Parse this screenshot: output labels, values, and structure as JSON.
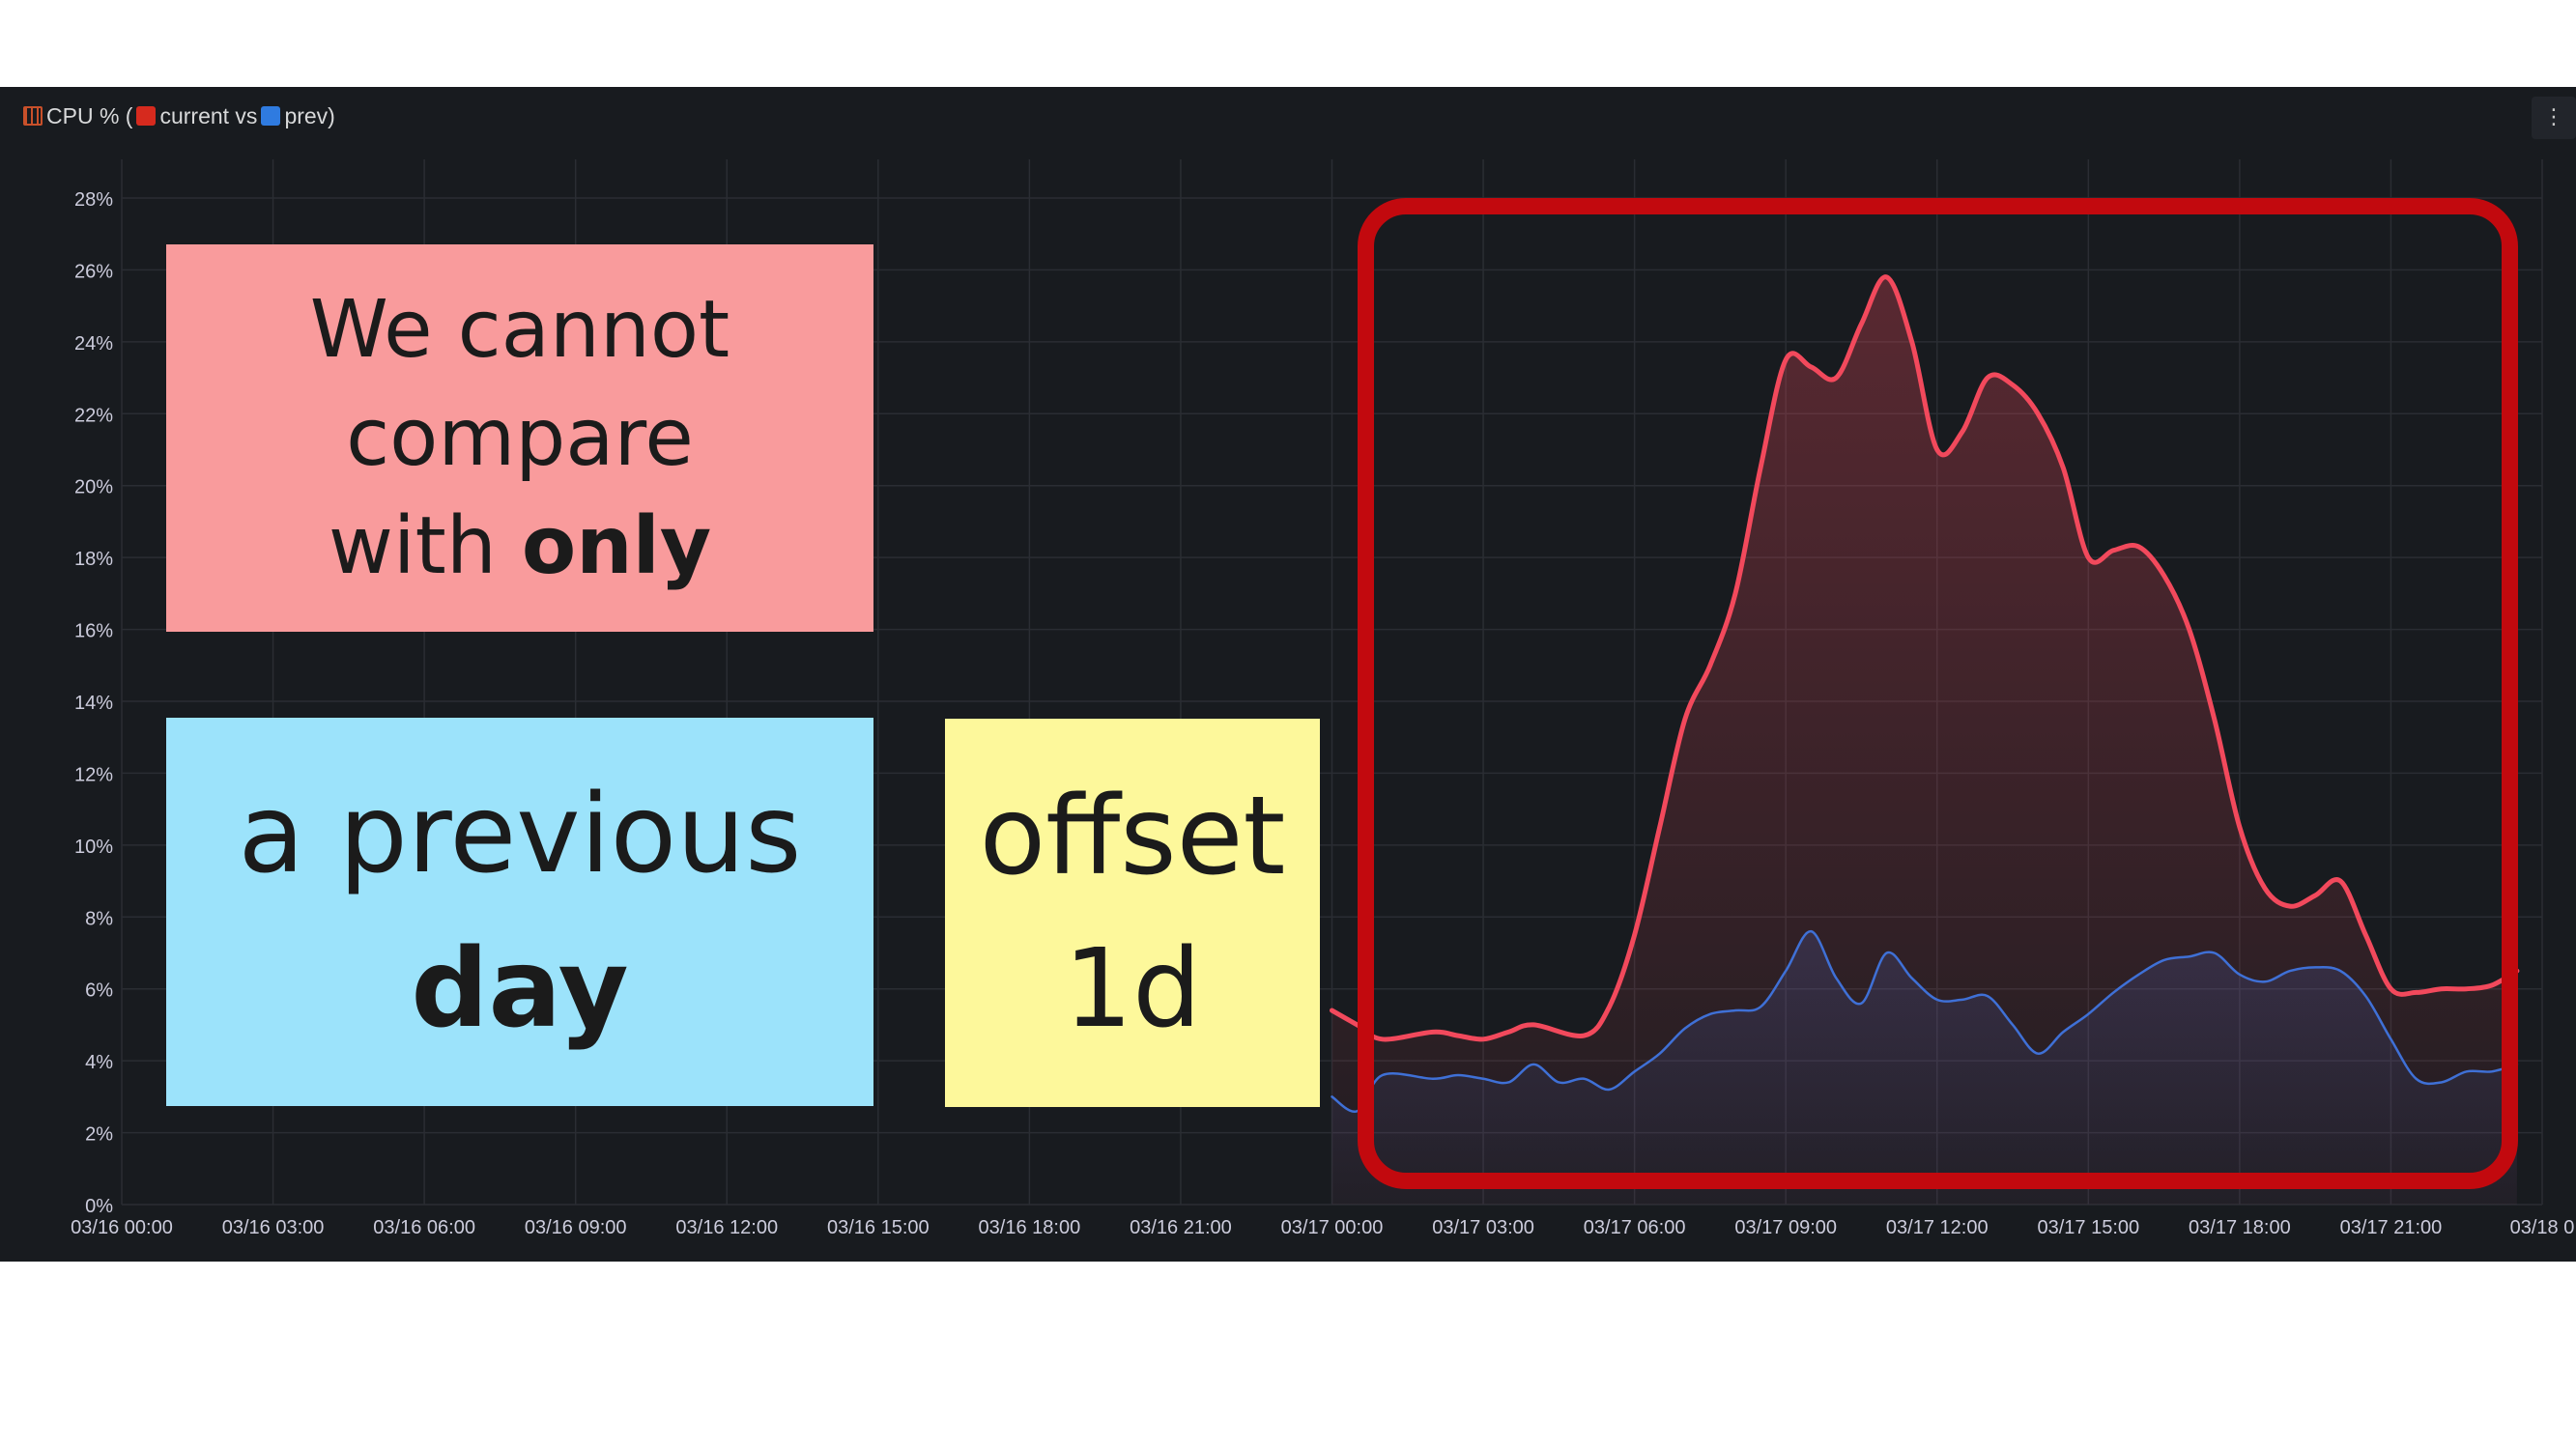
{
  "panel": {
    "title_prefix": "CPU % (",
    "current_label": " current vs ",
    "prev_label": " prev)",
    "menu_label": "⋮",
    "colors": {
      "background": "#181b1f",
      "current": "#f2495c",
      "prev": "#3f70d6",
      "highlight": "#c2090e",
      "title_icon": "#c8502a"
    },
    "icons": [
      "calendar-icon",
      "red-square-icon",
      "blue-square-icon",
      "kebab-menu-icon"
    ]
  },
  "notes": {
    "cannot": {
      "line1": "We cannot",
      "line2": "compare",
      "line3_prefix": "with ",
      "line3_bold": "only"
    },
    "previous": {
      "line1": "a previous",
      "line2_bold": "day"
    },
    "offset": {
      "line1": "offset",
      "line2": "1d"
    }
  },
  "chart_data": {
    "type": "area",
    "title": "CPU % (current vs prev)",
    "y_ticks": [
      "0%",
      "2%",
      "4%",
      "6%",
      "8%",
      "10%",
      "12%",
      "14%",
      "16%",
      "18%",
      "20%",
      "22%",
      "24%",
      "26%",
      "28%"
    ],
    "x_ticks": [
      "03/16 00:00",
      "03/16 03:00",
      "03/16 06:00",
      "03/16 09:00",
      "03/16 12:00",
      "03/16 15:00",
      "03/16 18:00",
      "03/16 21:00",
      "03/17 00:00",
      "03/17 03:00",
      "03/17 06:00",
      "03/17 09:00",
      "03/17 12:00",
      "03/17 15:00",
      "03/17 18:00",
      "03/17 21:00",
      "03/18 0"
    ],
    "ylim": [
      0,
      28
    ],
    "x_range_hours": [
      0,
      48
    ],
    "grid": true,
    "series": [
      {
        "name": "current",
        "color": "#f2495c",
        "x": [
          24,
          24.5,
          25,
          26,
          26.5,
          27,
          27.5,
          28,
          29,
          29.5,
          30,
          30.5,
          31,
          31.5,
          32,
          32.5,
          33,
          33.5,
          34,
          34.5,
          35,
          35.5,
          36,
          36.5,
          37,
          37.5,
          38,
          38.5,
          39,
          39.5,
          40,
          40.5,
          41,
          41.5,
          42,
          42.5,
          43,
          43.5,
          44,
          44.5,
          45,
          45.5,
          46,
          46.5,
          47,
          47.5
        ],
        "values": [
          5.4,
          5.0,
          4.6,
          4.8,
          4.7,
          4.6,
          4.8,
          5.0,
          4.7,
          5.5,
          7.5,
          10.5,
          13.5,
          15.0,
          17.0,
          20.5,
          23.5,
          23.3,
          23.0,
          24.5,
          25.8,
          24.0,
          21.0,
          21.5,
          23.0,
          22.8,
          22.0,
          20.5,
          18.0,
          18.2,
          18.3,
          17.5,
          16.0,
          13.5,
          10.5,
          8.8,
          8.3,
          8.6,
          9.0,
          7.5,
          6.0,
          5.9,
          6.0,
          6.0,
          6.1,
          6.5
        ]
      },
      {
        "name": "prev",
        "color": "#3f70d6",
        "x": [
          24,
          24.5,
          25,
          26,
          26.5,
          27,
          27.5,
          28,
          28.5,
          29,
          29.5,
          30,
          30.5,
          31,
          31.5,
          32,
          32.5,
          33,
          33.5,
          34,
          34.5,
          35,
          35.5,
          36,
          36.5,
          37,
          37.5,
          38,
          38.5,
          39,
          39.5,
          40,
          40.5,
          41,
          41.5,
          42,
          42.5,
          43,
          43.5,
          44,
          44.5,
          45,
          45.5,
          46,
          46.5,
          47,
          47.5
        ],
        "values": [
          3.0,
          2.6,
          3.6,
          3.5,
          3.6,
          3.5,
          3.4,
          3.9,
          3.4,
          3.5,
          3.2,
          3.7,
          4.2,
          4.9,
          5.3,
          5.4,
          5.5,
          6.5,
          7.6,
          6.3,
          5.6,
          7.0,
          6.3,
          5.7,
          5.7,
          5.8,
          5.0,
          4.2,
          4.8,
          5.3,
          5.9,
          6.4,
          6.8,
          6.9,
          7.0,
          6.4,
          6.2,
          6.5,
          6.6,
          6.5,
          5.8,
          4.6,
          3.5,
          3.4,
          3.7,
          3.7,
          3.9
        ]
      }
    ]
  }
}
